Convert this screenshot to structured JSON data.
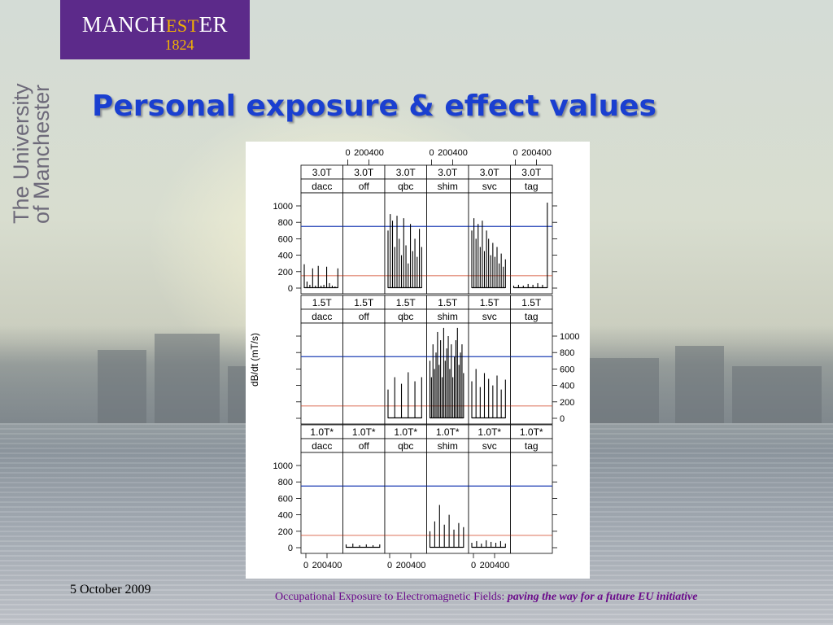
{
  "logo": {
    "name_pre": "MANCH",
    "name_est": "EST",
    "name_post": "ER",
    "year": "1824"
  },
  "side_text": {
    "line1": "The University",
    "line2": "of Manchester"
  },
  "title": "Personal exposure & effect values",
  "date": "5 October 2009",
  "footer": {
    "normal": "Occupational Exposure to Electromagnetic Fields: ",
    "italic": "paving the way for a future EU initiative"
  },
  "colors": {
    "title": "#1a3fd0",
    "logo_bg": "#5c2a8a",
    "blue_line": "#1f3fb5",
    "red_line": "#d04020",
    "footer": "#6a0a8a"
  },
  "chart_data": {
    "type": "bar",
    "ylabel": "dB/dt (mT/s)",
    "y_ticks": [
      0,
      200,
      400,
      600,
      800,
      1000
    ],
    "ylim": [
      0,
      1000
    ],
    "x_tick_labels": [
      "0",
      "200400"
    ],
    "blue_threshold": 750,
    "red_threshold": 150,
    "columns": [
      "dacc",
      "off",
      "qbc",
      "shim",
      "svc",
      "tag"
    ],
    "rows": [
      {
        "field": "3.0T",
        "panels": [
          {
            "label": "dacc",
            "field": "3.0T",
            "peaks": [
              290,
              80,
              40,
              240,
              30,
              270,
              30,
              40,
              260,
              60,
              30,
              20,
              240
            ]
          },
          {
            "label": "off",
            "field": "3.0T",
            "peaks": []
          },
          {
            "label": "qbc",
            "field": "3.0T",
            "peaks": [
              700,
              900,
              820,
              500,
              880,
              600,
              400,
              850,
              520,
              300,
              780,
              450,
              600,
              380,
              720,
              500
            ]
          },
          {
            "label": "shim",
            "field": "3.0T",
            "peaks": []
          },
          {
            "label": "svc",
            "field": "3.0T",
            "peaks": [
              700,
              850,
              600,
              780,
              500,
              820,
              450,
              700,
              600,
              400,
              550,
              380,
              500,
              300,
              420,
              260,
              350
            ]
          },
          {
            "label": "tag",
            "field": "3.0T",
            "peaks": [
              30,
              40,
              30,
              50,
              40,
              60,
              40,
              1040
            ]
          }
        ]
      },
      {
        "field": "1.5T",
        "panels": [
          {
            "label": "dacc",
            "field": "1.5T",
            "peaks": []
          },
          {
            "label": "off",
            "field": "1.5T",
            "peaks": []
          },
          {
            "label": "qbc",
            "field": "1.5T",
            "peaks": [
              350,
              500,
              420,
              560,
              450,
              500
            ]
          },
          {
            "label": "shim",
            "field": "1.5T",
            "peaks": [
              700,
              500,
              900,
              600,
              800,
              1050,
              650,
              950,
              500,
              1100,
              700,
              850,
              1000,
              600,
              900,
              500,
              750,
              950,
              1100,
              650,
              800,
              900,
              550
            ]
          },
          {
            "label": "svc",
            "field": "1.5T",
            "peaks": [
              450,
              600,
              380,
              550,
              480,
              400,
              520,
              350,
              470
            ]
          },
          {
            "label": "tag",
            "field": "1.5T",
            "peaks": []
          }
        ]
      },
      {
        "field": "1.0T*",
        "panels": [
          {
            "label": "dacc",
            "field": "1.0T*",
            "peaks": []
          },
          {
            "label": "off",
            "field": "1.0T*",
            "peaks": [
              40,
              50,
              30,
              40,
              30,
              40
            ]
          },
          {
            "label": "qbc",
            "field": "1.0T*",
            "peaks": []
          },
          {
            "label": "shim",
            "field": "1.0T*",
            "peaks": [
              200,
              320,
              520,
              280,
              400,
              220,
              300,
              250
            ]
          },
          {
            "label": "svc",
            "field": "1.0T*",
            "peaks": [
              60,
              80,
              50,
              90,
              70,
              60,
              80,
              50
            ]
          },
          {
            "label": "tag",
            "field": "1.0T*",
            "peaks": []
          }
        ]
      }
    ]
  }
}
